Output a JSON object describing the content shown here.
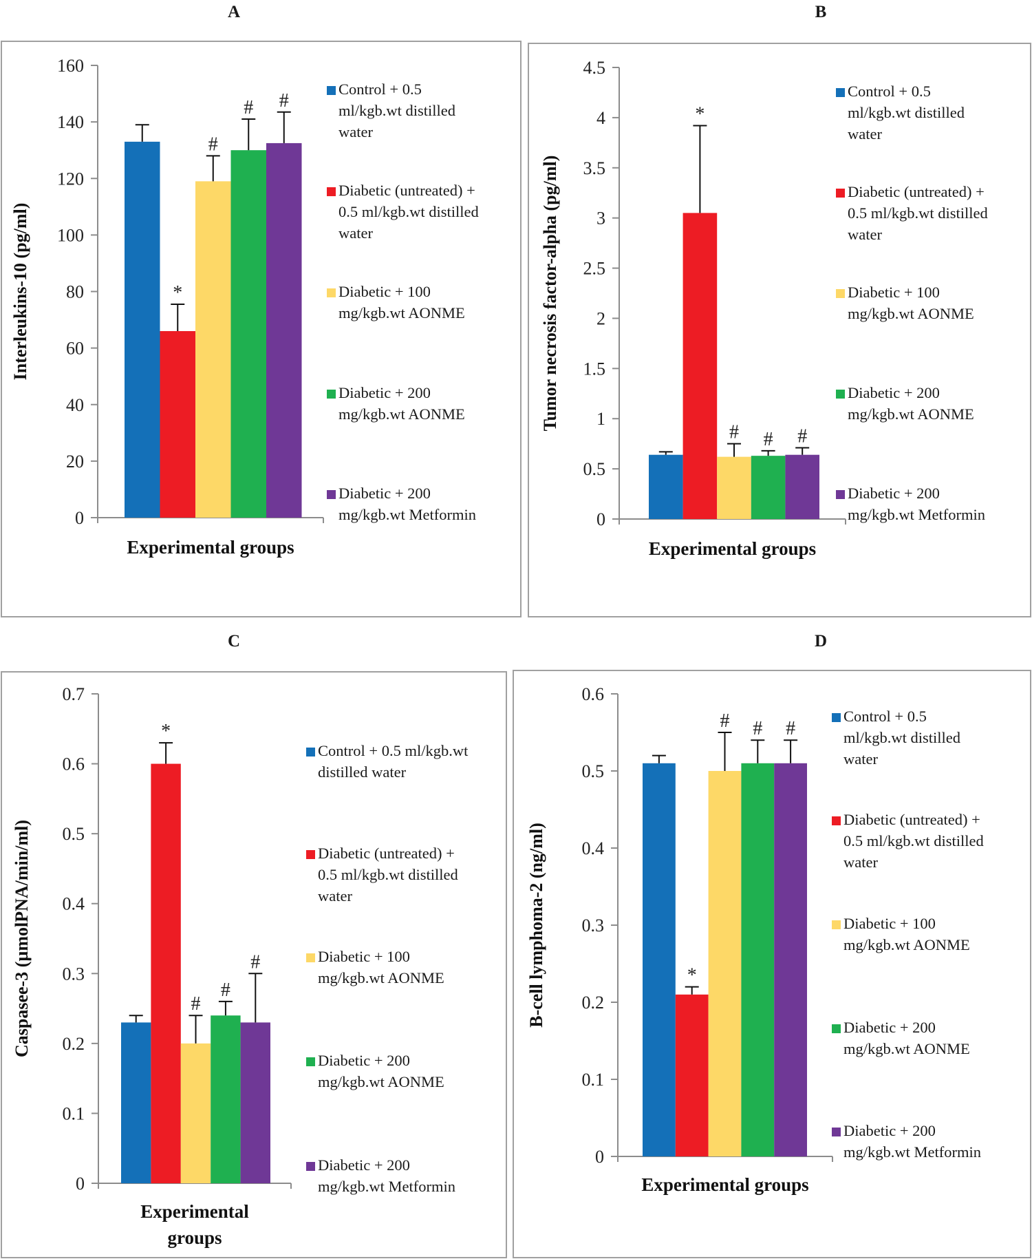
{
  "figure": {
    "panels": [
      "A",
      "B",
      "C",
      "D"
    ]
  },
  "legend": {
    "entries": [
      {
        "name": "Control + 0.5 ml/kgb.wt distilled water",
        "color": "#1470b8"
      },
      {
        "name": "Diabetic (untreated) + 0.5 ml/kgb.wt distilled water",
        "color": "#ed1c24"
      },
      {
        "name": "Diabetic + 100 mg/kgb.wt AONME",
        "color": "#fdd867"
      },
      {
        "name": "Diabetic + 200 mg/kgb.wt AONME",
        "color": "#1fb050"
      },
      {
        "name": "Diabetic + 200 mg/kgb.wt Metformin",
        "color": "#6f3896"
      }
    ]
  },
  "chart_data": [
    {
      "panel": "A",
      "type": "bar",
      "title": "",
      "xlabel": "Experimental groups",
      "ylabel": "Interleukins-10  (pg/ml)",
      "ylim": [
        0,
        160
      ],
      "yticks": [
        "0",
        "20",
        "40",
        "60",
        "80",
        "100",
        "120",
        "140",
        "160"
      ],
      "categories": [
        "Control + 0.5 ml/kgb.wt distilled water",
        "Diabetic (untreated) + 0.5 ml/kgb.wt distilled water",
        "Diabetic + 100 mg/kgb.wt AONME",
        "Diabetic + 200 mg/kgb.wt AONME",
        "Diabetic + 200 mg/kgb.wt Metformin"
      ],
      "values": [
        133,
        66,
        119,
        130,
        132.5
      ],
      "errors": [
        6,
        9.5,
        9,
        11,
        11
      ],
      "markers": [
        "",
        "*",
        "#",
        "#",
        "#"
      ],
      "legend_lines": [
        [
          "Control + 0.5",
          "ml/kgb.wt distilled",
          "water"
        ],
        [
          "Diabetic (untreated) +",
          "0.5 ml/kgb.wt distilled",
          "water"
        ],
        [
          "Diabetic + 100",
          "mg/kgb.wt AONME"
        ],
        [
          "Diabetic + 200",
          "mg/kgb.wt AONME"
        ],
        [
          "Diabetic + 200",
          "mg/kgb.wt Metformin"
        ]
      ],
      "legend_position": "right",
      "grid": false
    },
    {
      "panel": "B",
      "type": "bar",
      "title": "",
      "xlabel": "Experimental groups",
      "ylabel": "Tumor necrosis factor-alpha  (pg/ml)",
      "ylim": [
        0,
        4.5
      ],
      "yticks": [
        "0",
        "0.5",
        "1",
        "1.5",
        "2",
        "2.5",
        "3",
        "3.5",
        "4",
        "4.5"
      ],
      "categories": [
        "Control + 0.5 ml/kgb.wt distilled water",
        "Diabetic (untreated) + 0.5 ml/kgb.wt distilled water",
        "Diabetic + 100 mg/kgb.wt AONME",
        "Diabetic + 200 mg/kgb.wt AONME",
        "Diabetic + 200 mg/kgb.wt Metformin"
      ],
      "values": [
        0.64,
        3.05,
        0.62,
        0.63,
        0.64
      ],
      "errors": [
        0.03,
        0.87,
        0.13,
        0.05,
        0.07
      ],
      "markers": [
        "",
        "*",
        "#",
        "#",
        "#"
      ],
      "legend_lines": [
        [
          "Control + 0.5",
          "ml/kgb.wt distilled",
          "water"
        ],
        [
          "Diabetic (untreated) +",
          "0.5 ml/kgb.wt distilled",
          "water"
        ],
        [
          "Diabetic + 100",
          "mg/kgb.wt AONME"
        ],
        [
          "Diabetic + 200",
          "mg/kgb.wt AONME"
        ],
        [
          "Diabetic + 200",
          "mg/kgb.wt Metformin"
        ]
      ],
      "legend_position": "right",
      "grid": false
    },
    {
      "panel": "C",
      "type": "bar",
      "title": "",
      "xlabel": "Experimental groups",
      "xlabel_lines": [
        "Experimental",
        "groups"
      ],
      "ylabel": "Caspasee-3 (µmolPNA/min/ml)",
      "ylim": [
        0,
        0.7
      ],
      "yticks": [
        "0",
        "0.1",
        "0.2",
        "0.3",
        "0.4",
        "0.5",
        "0.6",
        "0.7"
      ],
      "categories": [
        "Control + 0.5 ml/kgb.wt distilled water",
        "Diabetic (untreated) + 0.5 ml/kgb.wt distilled water",
        "Diabetic + 100 mg/kgb.wt AONME",
        "Diabetic + 200 mg/kgb.wt AONME",
        "Diabetic + 200 mg/kgb.wt Metformin"
      ],
      "values": [
        0.23,
        0.6,
        0.2,
        0.24,
        0.23
      ],
      "errors": [
        0.01,
        0.03,
        0.04,
        0.02,
        0.07
      ],
      "markers": [
        "",
        "*",
        "#",
        "#",
        "#"
      ],
      "legend_lines": [
        [
          "Control + 0.5 ml/kgb.wt",
          "distilled water"
        ],
        [
          "Diabetic (untreated) +",
          "0.5 ml/kgb.wt distilled",
          "water"
        ],
        [
          "Diabetic + 100",
          "mg/kgb.wt AONME"
        ],
        [
          "Diabetic + 200",
          "mg/kgb.wt AONME"
        ],
        [
          "Diabetic + 200",
          "mg/kgb.wt Metformin"
        ]
      ],
      "legend_position": "right",
      "grid": false
    },
    {
      "panel": "D",
      "type": "bar",
      "title": "",
      "xlabel": "Experimental groups",
      "ylabel": "B-cell lymphoma-2  (ng/ml)",
      "ylim": [
        0,
        0.6
      ],
      "yticks": [
        "0",
        "0.1",
        "0.2",
        "0.3",
        "0.4",
        "0.5",
        "0.6"
      ],
      "categories": [
        "Control + 0.5 ml/kgb.wt distilled water",
        "Diabetic (untreated) + 0.5 ml/kgb.wt distilled water",
        "Diabetic + 100 mg/kgb.wt AONME",
        "Diabetic + 200 mg/kgb.wt AONME",
        "Diabetic + 200 mg/kgb.wt Metformin"
      ],
      "values": [
        0.51,
        0.21,
        0.5,
        0.51,
        0.51
      ],
      "errors": [
        0.01,
        0.01,
        0.05,
        0.03,
        0.03
      ],
      "markers": [
        "",
        "*",
        "#",
        "#",
        "#"
      ],
      "legend_lines": [
        [
          "Control + 0.5",
          "ml/kgb.wt distilled",
          "water"
        ],
        [
          "Diabetic (untreated) +",
          "0.5 ml/kgb.wt distilled",
          "water"
        ],
        [
          "Diabetic + 100",
          "mg/kgb.wt AONME"
        ],
        [
          "Diabetic + 200",
          "mg/kgb.wt AONME"
        ],
        [
          "Diabetic + 200",
          "mg/kgb.wt Metformin"
        ]
      ],
      "legend_position": "right",
      "grid": false
    }
  ]
}
